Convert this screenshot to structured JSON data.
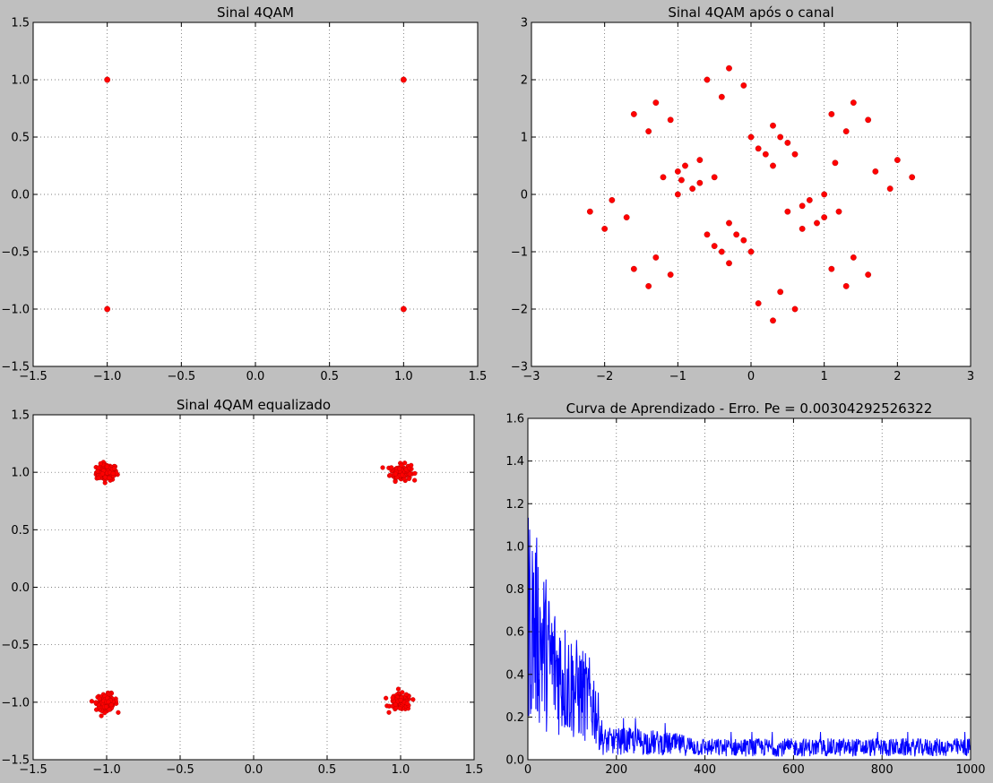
{
  "chart_data": [
    {
      "type": "scatter",
      "title": "Sinal 4QAM",
      "xlim": [
        -1.5,
        1.5
      ],
      "ylim": [
        -1.5,
        1.5
      ],
      "xticks": [
        -1.5,
        -1.0,
        -0.5,
        0.0,
        0.5,
        1.0,
        1.5
      ],
      "yticks": [
        -1.5,
        -1.0,
        -0.5,
        0.0,
        0.5,
        1.0,
        1.5
      ],
      "xticklabels": [
        "−1.5",
        "−1.0",
        "−0.5",
        "0.0",
        "0.5",
        "1.0",
        "1.5"
      ],
      "yticklabels": [
        "−1.5",
        "−1.0",
        "−0.5",
        "0.0",
        "0.5",
        "1.0",
        "1.5"
      ],
      "grid": true,
      "color": "#ff0000",
      "points": [
        [
          -1,
          1
        ],
        [
          1,
          1
        ],
        [
          -1,
          -1
        ],
        [
          1,
          -1
        ]
      ]
    },
    {
      "type": "scatter",
      "title": "Sinal 4QAM após o canal",
      "xlim": [
        -3,
        3
      ],
      "ylim": [
        -3,
        3
      ],
      "xticks": [
        -3,
        -2,
        -1,
        0,
        1,
        2,
        3
      ],
      "yticks": [
        -3,
        -2,
        -1,
        0,
        1,
        2,
        3
      ],
      "xticklabels": [
        "−3",
        "−2",
        "−1",
        "0",
        "1",
        "2",
        "3"
      ],
      "yticklabels": [
        "−3",
        "−2",
        "−1",
        "0",
        "1",
        "2",
        "3"
      ],
      "grid": true,
      "color": "#ff0000",
      "points": [
        [
          -0.6,
          2.0
        ],
        [
          -0.3,
          2.2
        ],
        [
          -0.1,
          1.9
        ],
        [
          -0.4,
          1.7
        ],
        [
          -1.6,
          1.4
        ],
        [
          -1.3,
          1.6
        ],
        [
          -1.1,
          1.3
        ],
        [
          -1.4,
          1.1
        ],
        [
          1.1,
          1.4
        ],
        [
          1.4,
          1.6
        ],
        [
          1.6,
          1.3
        ],
        [
          1.3,
          1.1
        ],
        [
          0.0,
          1.0
        ],
        [
          0.1,
          0.8
        ],
        [
          0.2,
          0.7
        ],
        [
          0.3,
          0.5
        ],
        [
          0.3,
          1.2
        ],
        [
          0.4,
          1.0
        ],
        [
          0.5,
          0.9
        ],
        [
          0.6,
          0.7
        ],
        [
          -1.0,
          0.4
        ],
        [
          -0.9,
          0.5
        ],
        [
          -0.7,
          0.6
        ],
        [
          -1.2,
          0.3
        ],
        [
          -0.8,
          0.1
        ],
        [
          -0.7,
          0.2
        ],
        [
          -0.5,
          0.3
        ],
        [
          -1.0,
          0.0
        ],
        [
          -0.95,
          0.25
        ],
        [
          1.15,
          0.55
        ],
        [
          1.7,
          0.4
        ],
        [
          2.0,
          0.6
        ],
        [
          2.2,
          0.3
        ],
        [
          1.9,
          0.1
        ],
        [
          -2.2,
          -0.3
        ],
        [
          -1.9,
          -0.1
        ],
        [
          -2.0,
          -0.6
        ],
        [
          -1.7,
          -0.4
        ],
        [
          -0.6,
          -0.7
        ],
        [
          -0.5,
          -0.9
        ],
        [
          -0.4,
          -1.0
        ],
        [
          -0.3,
          -1.2
        ],
        [
          -0.3,
          -0.5
        ],
        [
          -0.2,
          -0.7
        ],
        [
          -0.1,
          -0.8
        ],
        [
          0.0,
          -1.0
        ],
        [
          0.5,
          -0.3
        ],
        [
          0.7,
          -0.2
        ],
        [
          0.8,
          -0.1
        ],
        [
          1.0,
          0.0
        ],
        [
          0.7,
          -0.6
        ],
        [
          0.9,
          -0.5
        ],
        [
          1.0,
          -0.4
        ],
        [
          1.2,
          -0.3
        ],
        [
          -1.6,
          -1.3
        ],
        [
          -1.3,
          -1.1
        ],
        [
          -1.1,
          -1.4
        ],
        [
          -1.4,
          -1.6
        ],
        [
          1.1,
          -1.3
        ],
        [
          1.4,
          -1.1
        ],
        [
          1.6,
          -1.4
        ],
        [
          1.3,
          -1.6
        ],
        [
          0.1,
          -1.9
        ],
        [
          0.4,
          -1.7
        ],
        [
          0.6,
          -2.0
        ],
        [
          0.3,
          -2.2
        ]
      ]
    },
    {
      "type": "scatter",
      "title": "Sinal 4QAM equalizado",
      "xlim": [
        -1.5,
        1.5
      ],
      "ylim": [
        -1.5,
        1.5
      ],
      "xticks": [
        -1.5,
        -1.0,
        -0.5,
        0.0,
        0.5,
        1.0,
        1.5
      ],
      "yticks": [
        -1.5,
        -1.0,
        -0.5,
        0.0,
        0.5,
        1.0,
        1.5
      ],
      "xticklabels": [
        "−1.5",
        "−1.0",
        "−0.5",
        "0.0",
        "0.5",
        "1.0",
        "1.5"
      ],
      "yticklabels": [
        "−1.5",
        "−1.0",
        "−0.5",
        "0.0",
        "0.5",
        "1.0",
        "1.5"
      ],
      "grid": true,
      "color": "#ff0000",
      "cluster_centers": [
        [
          -1,
          1
        ],
        [
          1,
          1
        ],
        [
          -1,
          -1
        ],
        [
          1,
          -1
        ]
      ],
      "cluster_spread": 0.1,
      "points_per_cluster": 120
    },
    {
      "type": "line",
      "title": "Curva de Aprendizado - Erro. Pe = 0.00304292526322",
      "xlim": [
        0,
        1000
      ],
      "ylim": [
        0,
        1.6
      ],
      "xticks": [
        0,
        200,
        400,
        600,
        800,
        1000
      ],
      "yticks": [
        0.0,
        0.2,
        0.4,
        0.6,
        0.8,
        1.0,
        1.2,
        1.4,
        1.6
      ],
      "xticklabels": [
        "0",
        "200",
        "400",
        "600",
        "800",
        "1000"
      ],
      "yticklabels": [
        "0.0",
        "0.2",
        "0.4",
        "0.6",
        "0.8",
        "1.0",
        "1.2",
        "1.4",
        "1.6"
      ],
      "grid": true,
      "color": "#0000ff",
      "n_samples": 1000,
      "envelope": [
        [
          0,
          1.2
        ],
        [
          20,
          1.05
        ],
        [
          50,
          0.8
        ],
        [
          100,
          0.6
        ],
        [
          150,
          0.45
        ],
        [
          170,
          0.15
        ],
        [
          250,
          0.15
        ],
        [
          350,
          0.12
        ],
        [
          400,
          0.1
        ],
        [
          1000,
          0.1
        ]
      ]
    }
  ]
}
